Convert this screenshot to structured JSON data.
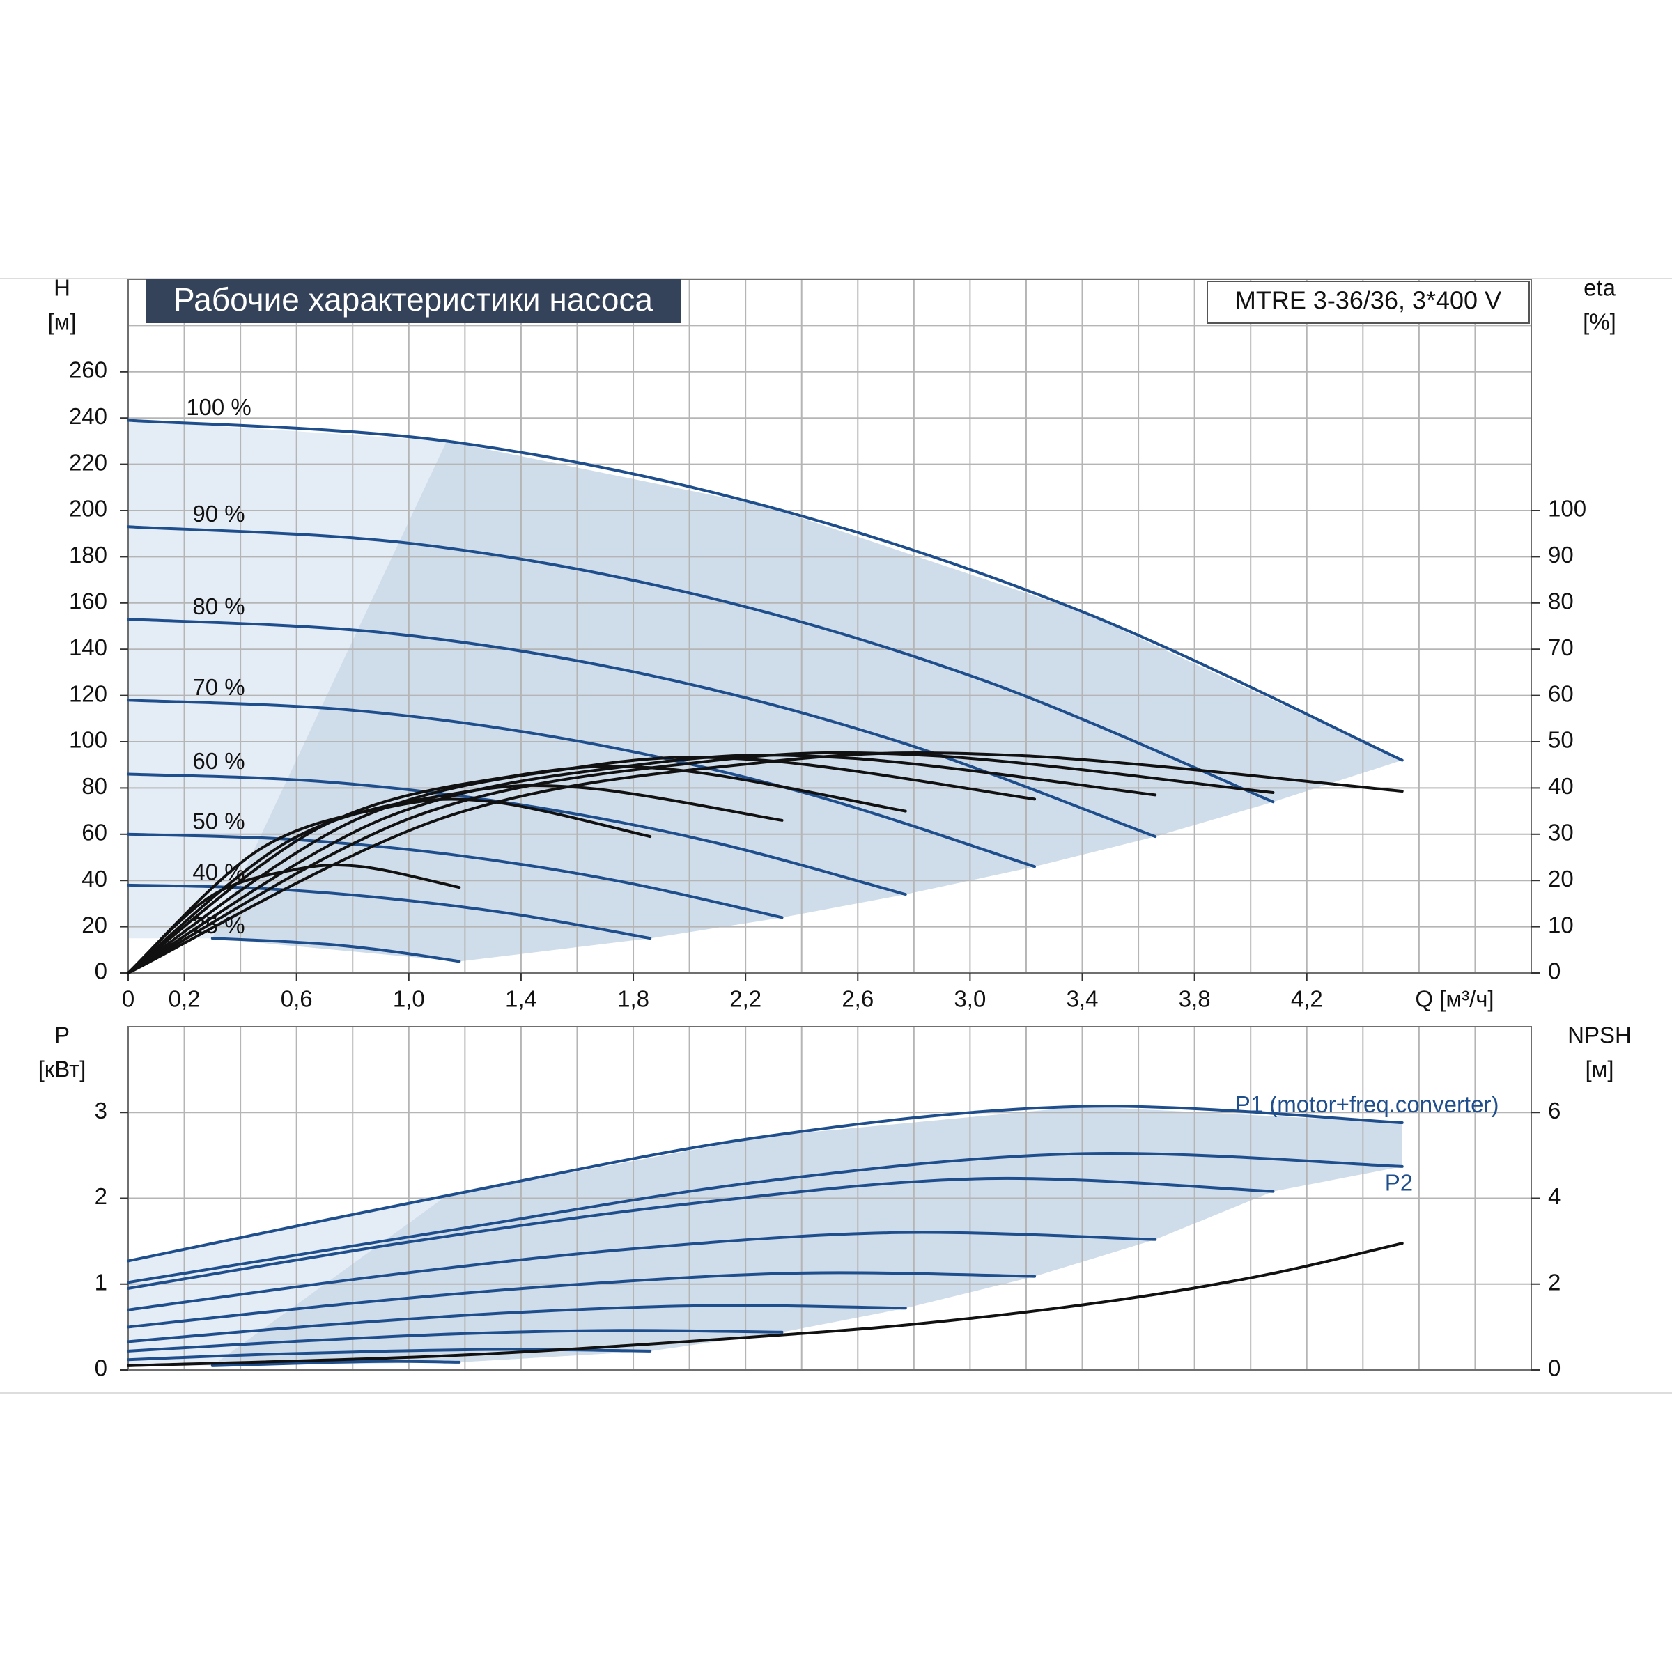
{
  "chart_data": [
    {
      "type": "line",
      "title": "Рабочие характеристики насоса",
      "subtitle": "MTRE 3-36/36, 3*400 V",
      "xlabel": "Q [м³/ч]",
      "ylabel": "H",
      "yunit": "[м]",
      "y2label": "eta",
      "y2unit": "[%]",
      "xlim": [
        0,
        5
      ],
      "ylim": [
        0,
        300
      ],
      "y2lim": [
        0,
        150
      ],
      "xticks": [
        0,
        {
          "value": 0.2,
          "label": "0,2"
        },
        {
          "value": 0.6,
          "label": "0,6"
        },
        {
          "value": 1.0,
          "label": "1,0"
        },
        {
          "value": 1.4,
          "label": "1,4"
        },
        {
          "value": 1.8,
          "label": "1,8"
        },
        {
          "value": 2.2,
          "label": "2,2"
        },
        {
          "value": 2.6,
          "label": "2,6"
        },
        {
          "value": 3.0,
          "label": "3,0"
        },
        {
          "value": 3.4,
          "label": "3,4"
        },
        {
          "value": 3.8,
          "label": "3,8"
        },
        {
          "value": 4.2,
          "label": "4,2"
        }
      ],
      "yticks": [
        0,
        20,
        40,
        60,
        80,
        100,
        120,
        140,
        160,
        180,
        200,
        220,
        240,
        260
      ],
      "y2ticks": [
        0,
        10,
        20,
        30,
        40,
        50,
        60,
        70,
        80,
        90,
        100
      ],
      "xgrid": [
        0,
        0.2,
        0.4,
        0.6,
        0.8,
        1.0,
        1.2,
        1.4,
        1.6,
        1.8,
        2.0,
        2.2,
        2.4,
        2.6,
        2.8,
        3.0,
        3.2,
        3.4,
        3.6,
        3.8,
        4.0,
        4.2,
        4.4,
        4.6,
        4.8,
        5.0
      ],
      "ygrid": [
        0,
        20,
        40,
        60,
        80,
        100,
        120,
        140,
        160,
        180,
        200,
        220,
        240,
        260,
        280
      ],
      "grid": true,
      "label_pos": "start",
      "fill_color": "#e4ecf6",
      "fill_color_dark": "#cfdcea",
      "series": [
        {
          "name": "100 %",
          "color": "#1f4e8c",
          "x": [
            0,
            1.135,
            2.27,
            3.405,
            4.54
          ],
          "values": [
            239,
            230,
            202,
            156,
            92
          ]
        },
        {
          "name": "90 %",
          "color": "#1f4e8c",
          "x": [
            0,
            1.02,
            2.04,
            3.06,
            4.08
          ],
          "values": [
            193,
            185.6,
            163.2,
            126,
            74
          ]
        },
        {
          "name": "80 %",
          "color": "#1f4e8c",
          "x": [
            0,
            0.915,
            1.83,
            2.745,
            3.66
          ],
          "values": [
            153,
            147.1,
            129.5,
            100.1,
            59
          ]
        },
        {
          "name": "70 %",
          "color": "#1f4e8c",
          "x": [
            0,
            0.81,
            1.62,
            2.42,
            3.23
          ],
          "values": [
            118,
            113.5,
            99.9,
            77.6,
            46
          ]
        },
        {
          "name": "60 %",
          "color": "#1f4e8c",
          "x": [
            0,
            0.69,
            1.385,
            2.08,
            2.77
          ],
          "values": [
            86,
            82.8,
            73,
            56.7,
            34
          ]
        },
        {
          "name": "50 %",
          "color": "#1f4e8c",
          "x": [
            0,
            0.58,
            1.165,
            1.75,
            2.33
          ],
          "values": [
            60,
            57.8,
            51,
            39.7,
            24
          ]
        },
        {
          "name": "40 %",
          "color": "#1f4e8c",
          "x": [
            0,
            0.465,
            0.93,
            1.395,
            1.86
          ],
          "values": [
            38,
            36.6,
            32.2,
            25.1,
            15
          ]
        },
        {
          "name": "25 %",
          "color": "#1f4e8c",
          "x": [
            0.3,
            0.52,
            0.74,
            0.96,
            1.18
          ],
          "values": [
            15,
            13.8,
            12.1,
            9,
            5
          ]
        },
        {
          "color": "#111111",
          "axis": "y2",
          "x": [
            0,
            1.135,
            2.27,
            3.18,
            4.54
          ],
          "values": [
            0,
            33.8,
            45.6,
            47,
            39.3
          ]
        },
        {
          "color": "#111111",
          "axis": "y2",
          "x": [
            0,
            1.02,
            2.04,
            2.86,
            4.08
          ],
          "values": [
            0,
            33.8,
            45.6,
            47,
            39
          ]
        },
        {
          "color": "#111111",
          "axis": "y2",
          "x": [
            0,
            0.915,
            1.83,
            2.56,
            3.66
          ],
          "values": [
            0,
            33.5,
            45.1,
            46.5,
            38.5
          ]
        },
        {
          "color": "#111111",
          "axis": "y2",
          "x": [
            0,
            0.81,
            1.62,
            2.26,
            3.23
          ],
          "values": [
            0,
            33.1,
            44.6,
            46,
            37.6
          ]
        },
        {
          "color": "#111111",
          "axis": "y2",
          "x": [
            0,
            0.69,
            1.385,
            1.94,
            2.77
          ],
          "values": [
            0,
            31.7,
            42.7,
            44,
            35
          ]
        },
        {
          "color": "#111111",
          "axis": "y2",
          "x": [
            0,
            0.58,
            1.165,
            1.63,
            2.33
          ],
          "values": [
            0,
            28.8,
            38.8,
            40,
            33
          ]
        },
        {
          "color": "#111111",
          "axis": "y2",
          "x": [
            0,
            0.465,
            0.93,
            1.3,
            1.86
          ],
          "values": [
            0,
            26.6,
            35.9,
            37,
            29.5
          ]
        },
        {
          "color": "#111111",
          "axis": "y2",
          "x": [
            0,
            0.295,
            0.59,
            0.83,
            1.18
          ],
          "values": [
            0,
            16.6,
            22.3,
            23,
            18.5
          ]
        }
      ]
    },
    {
      "type": "line",
      "ylabel": "P",
      "yunit": "[кВт]",
      "y2label": "NPSH",
      "y2unit": "[м]",
      "xlim": [
        0,
        5
      ],
      "ylim": [
        0,
        4
      ],
      "y2lim": [
        0,
        8
      ],
      "yticks": [
        0,
        1,
        2,
        3
      ],
      "y2ticks": [
        0,
        2,
        4,
        6
      ],
      "xgrid": [
        0,
        0.2,
        0.4,
        0.6,
        0.8,
        1.0,
        1.2,
        1.4,
        1.6,
        1.8,
        2.0,
        2.2,
        2.4,
        2.6,
        2.8,
        3.0,
        3.2,
        3.4,
        3.6,
        3.8,
        4.0,
        4.2,
        4.4,
        4.6,
        4.8,
        5.0
      ],
      "ygrid": [
        0,
        1,
        2,
        3
      ],
      "grid": true,
      "label_pos": "end",
      "fill_color": "#e4ecf6",
      "fill_color_dark": "#cfdcea",
      "series": [
        {
          "name": "P1 (motor+freq.converter)",
          "color": "#1f4e8c",
          "x": [
            0,
            1.135,
            2.27,
            3.405,
            4.54
          ],
          "values": [
            1.27,
            2.03,
            2.72,
            3.07,
            2.88
          ]
        },
        {
          "name": "P2",
          "color": "#1f4e8c",
          "x": [
            0,
            1.135,
            2.27,
            3.405,
            4.54
          ],
          "values": [
            1.02,
            1.62,
            2.2,
            2.52,
            2.37
          ]
        },
        {
          "color": "#1f4e8c",
          "x": [
            0,
            1.02,
            2.04,
            3.06,
            4.08
          ],
          "values": [
            0.95,
            1.5,
            1.95,
            2.23,
            2.08
          ]
        },
        {
          "color": "#1f4e8c",
          "x": [
            0,
            0.915,
            1.83,
            2.745,
            3.66
          ],
          "values": [
            0.7,
            1.1,
            1.42,
            1.6,
            1.52
          ]
        },
        {
          "color": "#1f4e8c",
          "x": [
            0,
            0.81,
            1.62,
            2.42,
            3.23
          ],
          "values": [
            0.5,
            0.78,
            1.0,
            1.13,
            1.09
          ]
        },
        {
          "color": "#1f4e8c",
          "x": [
            0,
            0.69,
            1.385,
            2.08,
            2.77
          ],
          "values": [
            0.33,
            0.52,
            0.67,
            0.75,
            0.72
          ]
        },
        {
          "color": "#1f4e8c",
          "x": [
            0,
            0.58,
            1.165,
            1.75,
            2.33
          ],
          "values": [
            0.22,
            0.33,
            0.42,
            0.46,
            0.44
          ]
        },
        {
          "color": "#1f4e8c",
          "x": [
            0,
            0.465,
            0.93,
            1.395,
            1.86
          ],
          "values": [
            0.12,
            0.18,
            0.22,
            0.24,
            0.22
          ]
        },
        {
          "color": "#1f4e8c",
          "x": [
            0.3,
            0.52,
            0.74,
            0.96,
            1.18
          ],
          "values": [
            0.05,
            0.07,
            0.09,
            0.1,
            0.09
          ]
        },
        {
          "color": "#111111",
          "axis": "y2",
          "x": [
            0,
            1.2,
            2.4,
            3.0,
            3.6,
            4.08,
            4.54
          ],
          "values": [
            0.1,
            0.35,
            0.85,
            1.2,
            1.7,
            2.25,
            2.95
          ]
        }
      ]
    }
  ]
}
